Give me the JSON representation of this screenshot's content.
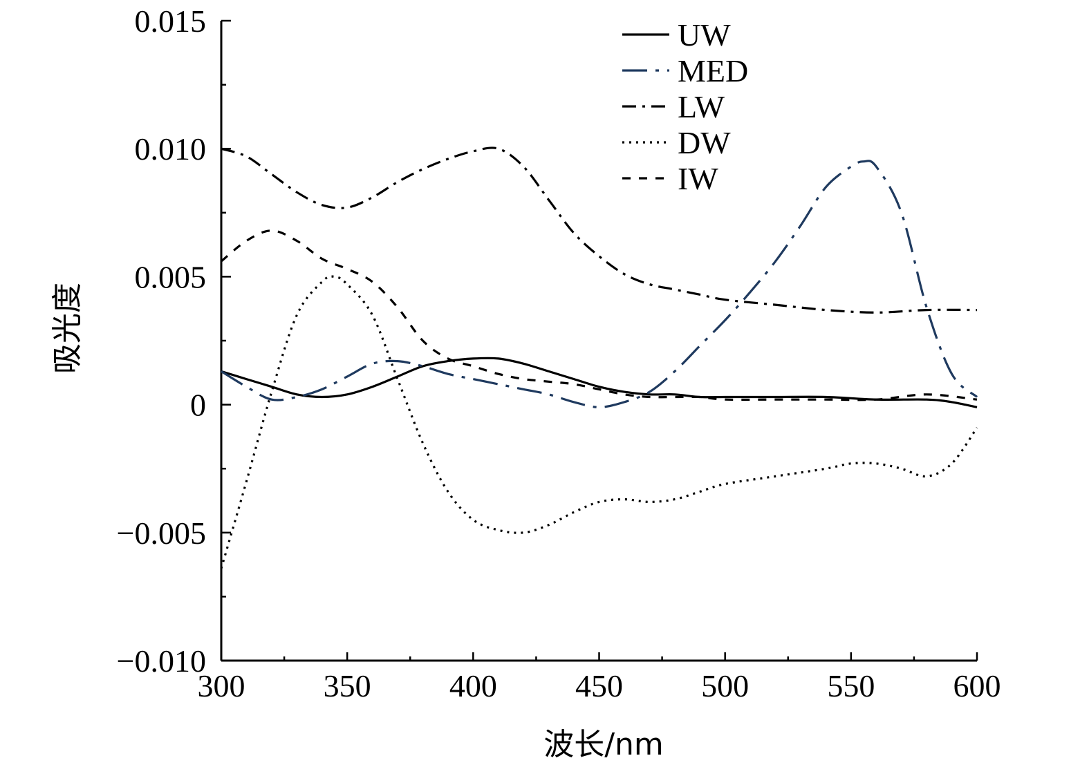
{
  "chart_data": {
    "type": "line",
    "title": "",
    "xlabel": "波长/nm",
    "ylabel": "吸光度",
    "xlim": [
      300,
      600
    ],
    "ylim": [
      -0.01,
      0.015
    ],
    "xticks": [
      300,
      350,
      400,
      450,
      500,
      550,
      600
    ],
    "xtick_labels": [
      "300",
      "350",
      "400",
      "450",
      "500",
      "550",
      "600"
    ],
    "yticks": [
      -0.01,
      -0.005,
      0,
      0.005,
      0.01,
      0.015
    ],
    "ytick_labels": [
      "−0.010",
      "−0.005",
      "0",
      "0.005",
      "0.010",
      "0.015"
    ],
    "grid": false,
    "legend_position": "top-right",
    "series": [
      {
        "name": "UW",
        "color": "#000000",
        "dash": "solid",
        "x": [
          300,
          310,
          320,
          330,
          340,
          350,
          360,
          370,
          380,
          390,
          400,
          410,
          420,
          430,
          440,
          450,
          460,
          470,
          480,
          490,
          500,
          520,
          540,
          560,
          580,
          590,
          600
        ],
        "y": [
          0.0013,
          0.001,
          0.0007,
          0.0004,
          0.0003,
          0.0004,
          0.0007,
          0.0011,
          0.0015,
          0.0017,
          0.0018,
          0.0018,
          0.0016,
          0.0013,
          0.001,
          0.0007,
          0.0005,
          0.0004,
          0.0004,
          0.0003,
          0.0003,
          0.0003,
          0.0003,
          0.0002,
          0.0002,
          0.0001,
          -0.0001
        ]
      },
      {
        "name": "MED",
        "color": "#1f3a5f",
        "dash": "long-dash-dot",
        "x": [
          300,
          310,
          320,
          330,
          340,
          350,
          360,
          370,
          380,
          390,
          400,
          410,
          420,
          430,
          440,
          450,
          460,
          470,
          480,
          490,
          500,
          510,
          520,
          530,
          540,
          550,
          555,
          560,
          570,
          580,
          590,
          600
        ],
        "y": [
          0.0013,
          0.0007,
          0.0002,
          0.0003,
          0.0006,
          0.0011,
          0.0016,
          0.0017,
          0.0015,
          0.0012,
          0.001,
          0.0008,
          0.0006,
          0.0004,
          0.0001,
          -0.0001,
          0.0001,
          0.0005,
          0.0013,
          0.0023,
          0.0033,
          0.0044,
          0.0056,
          0.007,
          0.0085,
          0.0093,
          0.0095,
          0.0093,
          0.0075,
          0.0038,
          0.0012,
          0.0003
        ]
      },
      {
        "name": "LW",
        "color": "#000000",
        "dash": "dash-dot",
        "x": [
          300,
          310,
          320,
          330,
          340,
          350,
          360,
          370,
          380,
          390,
          400,
          410,
          420,
          430,
          440,
          450,
          460,
          470,
          480,
          490,
          500,
          520,
          540,
          560,
          580,
          600
        ],
        "y": [
          0.01,
          0.0097,
          0.009,
          0.0083,
          0.0078,
          0.0077,
          0.0081,
          0.0087,
          0.0092,
          0.0096,
          0.0099,
          0.01,
          0.0093,
          0.008,
          0.0067,
          0.0058,
          0.0051,
          0.0047,
          0.0045,
          0.0043,
          0.0041,
          0.0039,
          0.0037,
          0.0036,
          0.0037,
          0.0037
        ]
      },
      {
        "name": "DW",
        "color": "#000000",
        "dash": "dotted",
        "x": [
          300,
          310,
          320,
          330,
          340,
          345,
          350,
          360,
          370,
          380,
          390,
          400,
          410,
          420,
          430,
          440,
          450,
          460,
          470,
          480,
          490,
          500,
          520,
          540,
          550,
          560,
          570,
          580,
          590,
          600
        ],
        "y": [
          -0.0064,
          -0.003,
          0.0005,
          0.0035,
          0.0048,
          0.005,
          0.0047,
          0.0035,
          0.001,
          -0.0015,
          -0.0034,
          -0.0045,
          -0.0049,
          -0.005,
          -0.0047,
          -0.0042,
          -0.0038,
          -0.0037,
          -0.0038,
          -0.0037,
          -0.0034,
          -0.0031,
          -0.0028,
          -0.0025,
          -0.0023,
          -0.0023,
          -0.0025,
          -0.0028,
          -0.0023,
          -0.0009
        ]
      },
      {
        "name": "IW",
        "color": "#000000",
        "dash": "short-dash",
        "x": [
          300,
          310,
          320,
          330,
          340,
          350,
          360,
          370,
          380,
          390,
          400,
          410,
          420,
          430,
          440,
          450,
          460,
          470,
          480,
          490,
          500,
          520,
          540,
          560,
          580,
          600
        ],
        "y": [
          0.0056,
          0.0064,
          0.0068,
          0.0064,
          0.0057,
          0.0053,
          0.0048,
          0.0038,
          0.0025,
          0.0018,
          0.0015,
          0.0012,
          0.001,
          0.0009,
          0.0008,
          0.0006,
          0.0004,
          0.0003,
          0.0003,
          0.0003,
          0.0002,
          0.0002,
          0.0002,
          0.0002,
          0.0004,
          0.0002
        ]
      }
    ]
  }
}
